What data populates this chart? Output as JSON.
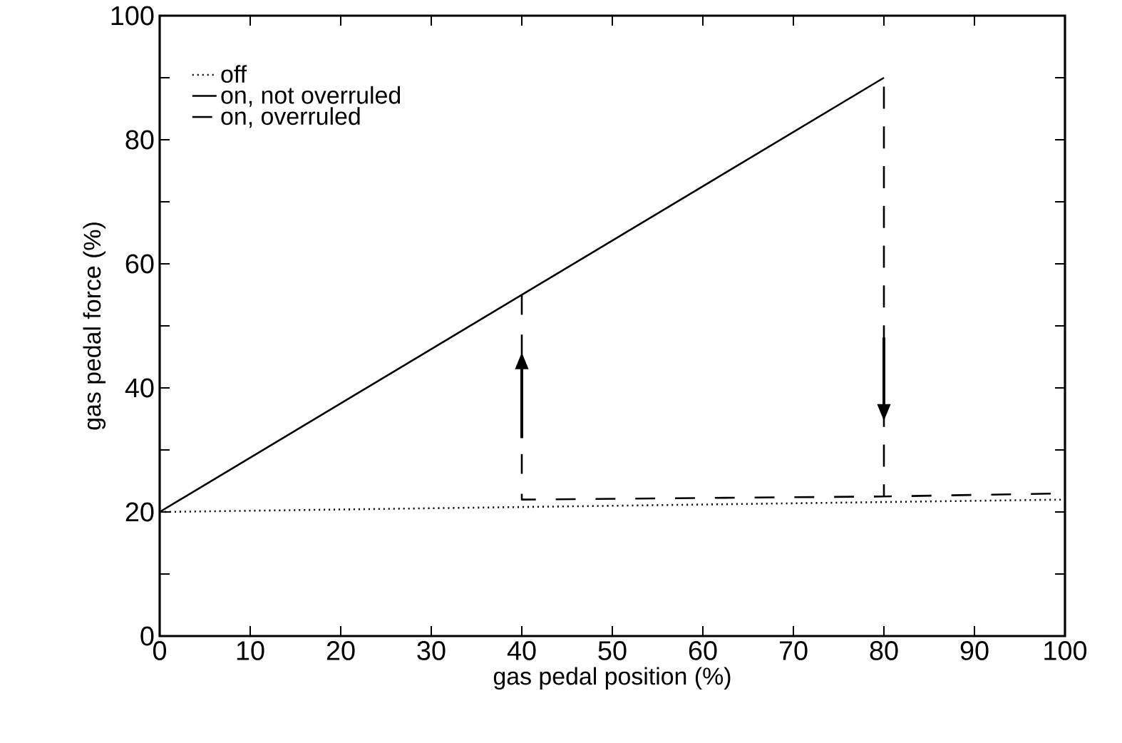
{
  "chart_data": {
    "type": "line",
    "xlabel": "gas pedal position (%)",
    "ylabel": "gas pedal force (%)",
    "xlim": [
      0,
      100
    ],
    "ylim": [
      0,
      100
    ],
    "xticks": [
      0,
      10,
      20,
      30,
      40,
      50,
      60,
      70,
      80,
      90,
      100
    ],
    "yticks": [
      0,
      {
        "value": 10,
        "label": null
      },
      20,
      {
        "value": 30,
        "label": null
      },
      40,
      {
        "value": 50,
        "label": null
      },
      60,
      {
        "value": 70,
        "label": null
      },
      80,
      {
        "value": 90,
        "label": null
      },
      100
    ],
    "legend": "top left",
    "grid": false,
    "marker": "none",
    "series": [
      {
        "name": "off",
        "color": "#000000",
        "line_style": "dotted",
        "x": [
          0,
          100
        ],
        "values": [
          20,
          22
        ]
      },
      {
        "name": "on, not overruled",
        "color": "#000000",
        "line_style": "solid",
        "x": [
          0,
          80
        ],
        "values": [
          20,
          90
        ]
      },
      {
        "name": "on, overruled",
        "color": "#000000",
        "line_style": "dashed",
        "x": [
          40,
          40,
          80,
          80,
          80,
          100
        ],
        "values": [
          55,
          22,
          22.5,
          90,
          22.5,
          23
        ]
      }
    ]
  }
}
